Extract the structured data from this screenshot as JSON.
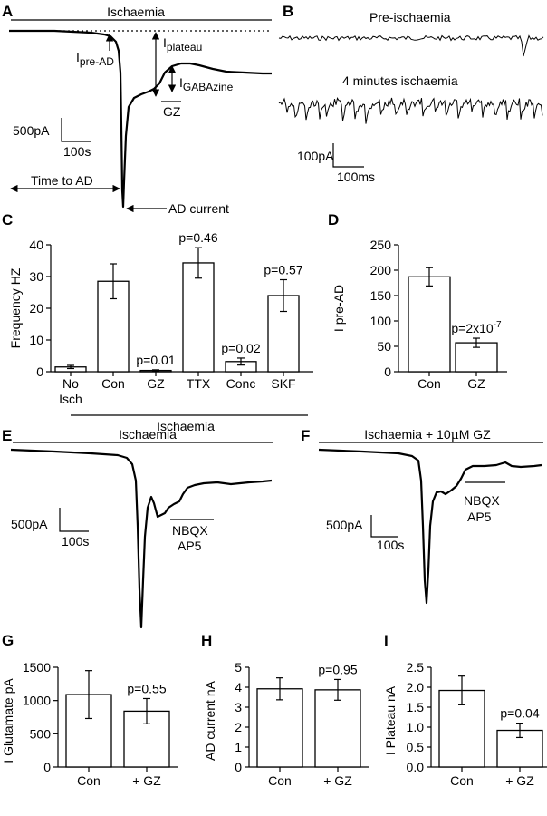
{
  "panels": {
    "A": {
      "letter": "A",
      "bar_label": "Ischaemia",
      "i_pre_ad": "I",
      "i_pre_ad_sub": "pre-AD",
      "i_plateau": "I",
      "i_plateau_sub": "plateau",
      "i_gabazine": "I",
      "i_gabazine_sub": "GABAzine",
      "gz_label": "GZ",
      "scale_y": "500pA",
      "scale_x": "100s",
      "time_to_ad": "Time to AD",
      "ad_current": "AD current"
    },
    "B": {
      "letter": "B",
      "trace1_label": "Pre-ischaemia",
      "trace2_label": "4 minutes ischaemia",
      "scale_y": "100pA",
      "scale_x": "100ms"
    },
    "E": {
      "letter": "E",
      "bar_label": "Ischaemia",
      "drug_line1": "NBQX",
      "drug_line2": "AP5",
      "scale_y": "500pA",
      "scale_x": "100s"
    },
    "F": {
      "letter": "F",
      "bar_label_prefix": "Ischaemia + 10",
      "bar_label_mu": "μ",
      "bar_label_suffix": "M GZ",
      "drug_line1": "NBQX",
      "drug_line2": "AP5",
      "scale_y": "500pA",
      "scale_x": "100s"
    }
  },
  "chart_data": [
    {
      "id": "C",
      "letter": "C",
      "type": "bar",
      "categories": [
        "No Isch",
        "Con",
        "GZ",
        "TTX",
        "Conc",
        "SKF"
      ],
      "category_lines": [
        [
          "No",
          "Isch"
        ],
        [
          "Con"
        ],
        [
          "GZ"
        ],
        [
          "TTX"
        ],
        [
          "Conc"
        ],
        [
          "SKF"
        ]
      ],
      "values": [
        1.5,
        28.5,
        0.4,
        34.3,
        3.2,
        24
      ],
      "errors": [
        0.5,
        5.5,
        0.2,
        4.8,
        1.1,
        5
      ],
      "annotations": [
        "",
        "",
        "p=0.01",
        "p=0.46",
        "p=0.02",
        "p=0.57"
      ],
      "ylabel": "Frequency HZ",
      "group_label": "Ischaemia",
      "ylim": [
        0,
        40
      ],
      "yticks": [
        0,
        10,
        20,
        30,
        40
      ],
      "ytick_labels": [
        "0",
        "10",
        "20",
        "30",
        "40"
      ]
    },
    {
      "id": "D",
      "letter": "D",
      "type": "bar",
      "categories": [
        "Con",
        "GZ"
      ],
      "values": [
        187,
        57
      ],
      "errors": [
        18,
        9
      ],
      "annotations": [
        "",
        "p=2x10-7"
      ],
      "annotation_parts": [
        null,
        {
          "base": "p=2x10",
          "sup": "-7"
        }
      ],
      "ylabel": "I pre-AD",
      "ylim": [
        0,
        250
      ],
      "yticks": [
        0,
        50,
        100,
        150,
        200,
        250
      ],
      "ytick_labels": [
        "0",
        "50",
        "100",
        "150",
        "200",
        "250"
      ]
    },
    {
      "id": "G",
      "letter": "G",
      "type": "bar",
      "categories": [
        "Con",
        "+ GZ"
      ],
      "values": [
        1090,
        840
      ],
      "errors": [
        360,
        190
      ],
      "annotations": [
        "",
        "p=0.55"
      ],
      "ylabel": "I Glutamate pA",
      "ylim": [
        0,
        1500
      ],
      "yticks": [
        0,
        500,
        1000,
        1500
      ],
      "ytick_labels": [
        "0",
        "500",
        "1000",
        "1500"
      ]
    },
    {
      "id": "H",
      "letter": "H",
      "type": "bar",
      "categories": [
        "Con",
        "+ GZ"
      ],
      "values": [
        3.92,
        3.87
      ],
      "errors": [
        0.55,
        0.52
      ],
      "annotations": [
        "",
        "p=0.95"
      ],
      "ylabel": "AD current nA",
      "ylim": [
        0,
        5
      ],
      "yticks": [
        0,
        1,
        2,
        3,
        4,
        5
      ],
      "ytick_labels": [
        "0",
        "1",
        "2",
        "3",
        "4",
        "5"
      ]
    },
    {
      "id": "I",
      "letter": "I",
      "type": "bar",
      "categories": [
        "Con",
        "+ GZ"
      ],
      "values": [
        1.92,
        0.92
      ],
      "errors": [
        0.36,
        0.18
      ],
      "annotations": [
        "",
        "p=0.04"
      ],
      "ylabel": "I Plateau nA",
      "ylim": [
        0,
        2.5
      ],
      "yticks": [
        0,
        0.5,
        1.0,
        1.5,
        2.0,
        2.5
      ],
      "ytick_labels": [
        "0.0",
        "0.5",
        "1.0",
        "1.5",
        "2.0",
        "2.5"
      ]
    }
  ]
}
